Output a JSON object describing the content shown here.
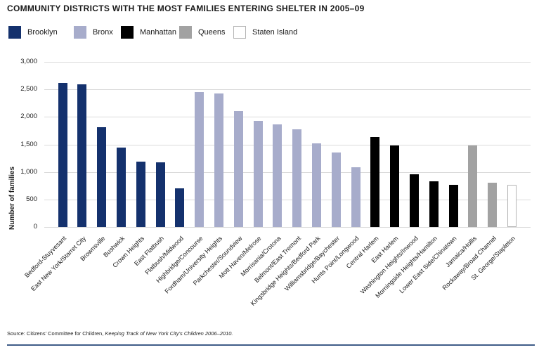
{
  "title": "COMMUNITY DISTRICTS WITH THE MOST FAMILIES ENTERING SHELTER IN 2005–09",
  "legend": {
    "items": [
      {
        "label": "Brooklyn",
        "color": "#14316d"
      },
      {
        "label": "Bronx",
        "color": "#a7accb"
      },
      {
        "label": "Manhattan",
        "color": "#000000"
      },
      {
        "label": "Queens",
        "color": "#a2a2a2"
      },
      {
        "label": "Staten Island",
        "color": "#ffffff",
        "border": "#b5b5b5"
      }
    ]
  },
  "y_axis": {
    "label": "Number of families",
    "ticks": [
      {
        "label": "3,000",
        "value": 3000
      },
      {
        "label": "2,500",
        "value": 2500
      },
      {
        "label": "2,000",
        "value": 2000
      },
      {
        "label": "1,500",
        "value": 1500
      },
      {
        "label": "1,000",
        "value": 1000
      },
      {
        "label": "500",
        "value": 500
      },
      {
        "label": "0",
        "value": 0
      }
    ]
  },
  "chart_data": {
    "type": "bar",
    "title": "COMMUNITY DISTRICTS WITH THE MOST FAMILIES ENTERING SHELTER IN 2005–09",
    "xlabel": "",
    "ylabel": "Number of families",
    "ylim": [
      0,
      3000
    ],
    "ytick_step": 500,
    "grid": true,
    "legend_position": "top",
    "bars": [
      {
        "category": "Bedford-Stuyvesant",
        "borough": "Brooklyn",
        "value": 2620
      },
      {
        "category": "East New York/Starret City",
        "borough": "Brooklyn",
        "value": 2590
      },
      {
        "category": "Brownsville",
        "borough": "Brooklyn",
        "value": 1810
      },
      {
        "category": "Bushwick",
        "borough": "Brooklyn",
        "value": 1440
      },
      {
        "category": "Crown Heights",
        "borough": "Brooklyn",
        "value": 1190
      },
      {
        "category": "East Flatbush",
        "borough": "Brooklyn",
        "value": 1180
      },
      {
        "category": "Flatbush/Midwood",
        "borough": "Brooklyn",
        "value": 700
      },
      {
        "category": "Highbridge/Concourse",
        "borough": "Bronx",
        "value": 2450
      },
      {
        "category": "Fordham/University Heights",
        "borough": "Bronx",
        "value": 2430
      },
      {
        "category": "Parkchester/Soundview",
        "borough": "Bronx",
        "value": 2100
      },
      {
        "category": "Mott Haven/Melrose",
        "borough": "Bronx",
        "value": 1930
      },
      {
        "category": "Morrisania/Crotona",
        "borough": "Bronx",
        "value": 1860
      },
      {
        "category": "Belmont/East Tremont",
        "borough": "Bronx",
        "value": 1780
      },
      {
        "category": "Kingsbridge Heights/Bedford Park",
        "borough": "Bronx",
        "value": 1520
      },
      {
        "category": "Williamsbridge/Baychester",
        "borough": "Bronx",
        "value": 1350
      },
      {
        "category": "Hunts Point/Longwood",
        "borough": "Bronx",
        "value": 1080
      },
      {
        "category": "Central Harlem",
        "borough": "Manhattan",
        "value": 1630
      },
      {
        "category": "East Harlem",
        "borough": "Manhattan",
        "value": 1480
      },
      {
        "category": "Washington Heights/Inwood",
        "borough": "Manhattan",
        "value": 960
      },
      {
        "category": "Morningside Heights/Hamilton",
        "borough": "Manhattan",
        "value": 830
      },
      {
        "category": "Lower East Side/Chinatown",
        "borough": "Manhattan",
        "value": 760
      },
      {
        "category": "Jamaica/Hollis",
        "borough": "Queens",
        "value": 1480
      },
      {
        "category": "Rockaway/Broad Channel",
        "borough": "Queens",
        "value": 800
      },
      {
        "category": "St. George/Stapleton",
        "borough": "Staten Island",
        "value": 760
      }
    ]
  },
  "colors": {
    "Brooklyn": "#14316d",
    "Bronx": "#a7accb",
    "Manhattan": "#000000",
    "Queens": "#a2a2a2",
    "Staten Island": "#ffffff",
    "staten_island_border": "#b5b5b5",
    "gridline": "#dadada",
    "footer_rule": "#3f5c88"
  },
  "source": {
    "prefix": "Source: Citizens' Committee for Children, ",
    "citation": "Keeping Track of New York City's Children 2006–2010."
  }
}
